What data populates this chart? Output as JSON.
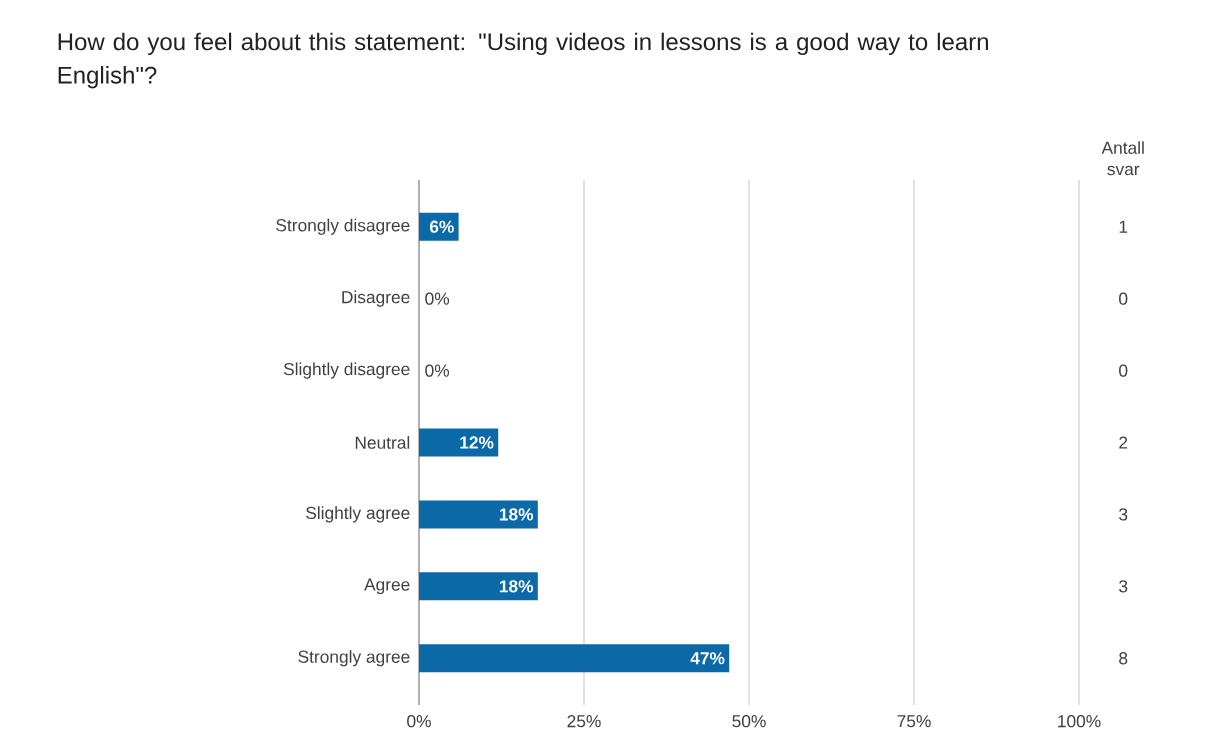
{
  "chart_data": {
    "type": "bar",
    "orientation": "horizontal",
    "title": "How do you feel about this statement: \"Using videos in lessons is a good way to learn English\"?",
    "categories": [
      "Strongly disagree",
      "Disagree",
      "Slightly disagree",
      "Neutral",
      "Slightly agree",
      "Agree",
      "Strongly agree"
    ],
    "values": [
      6,
      0,
      0,
      12,
      18,
      18,
      47
    ],
    "value_labels": [
      "6%",
      "0%",
      "0%",
      "12%",
      "18%",
      "18%",
      "47%"
    ],
    "color": "#0b69a8",
    "xlim": [
      0,
      100
    ],
    "xticks": [
      {
        "value": 0,
        "label": "0%"
      },
      {
        "value": 25,
        "label": "25%"
      },
      {
        "value": 50,
        "label": "50%"
      },
      {
        "value": 75,
        "label": "75%"
      },
      {
        "value": 100,
        "label": "100%"
      }
    ],
    "grid": "x",
    "annotations": [
      "Antall svar",
      "1",
      "0",
      "0",
      "2",
      "3",
      "3",
      "8"
    ]
  }
}
